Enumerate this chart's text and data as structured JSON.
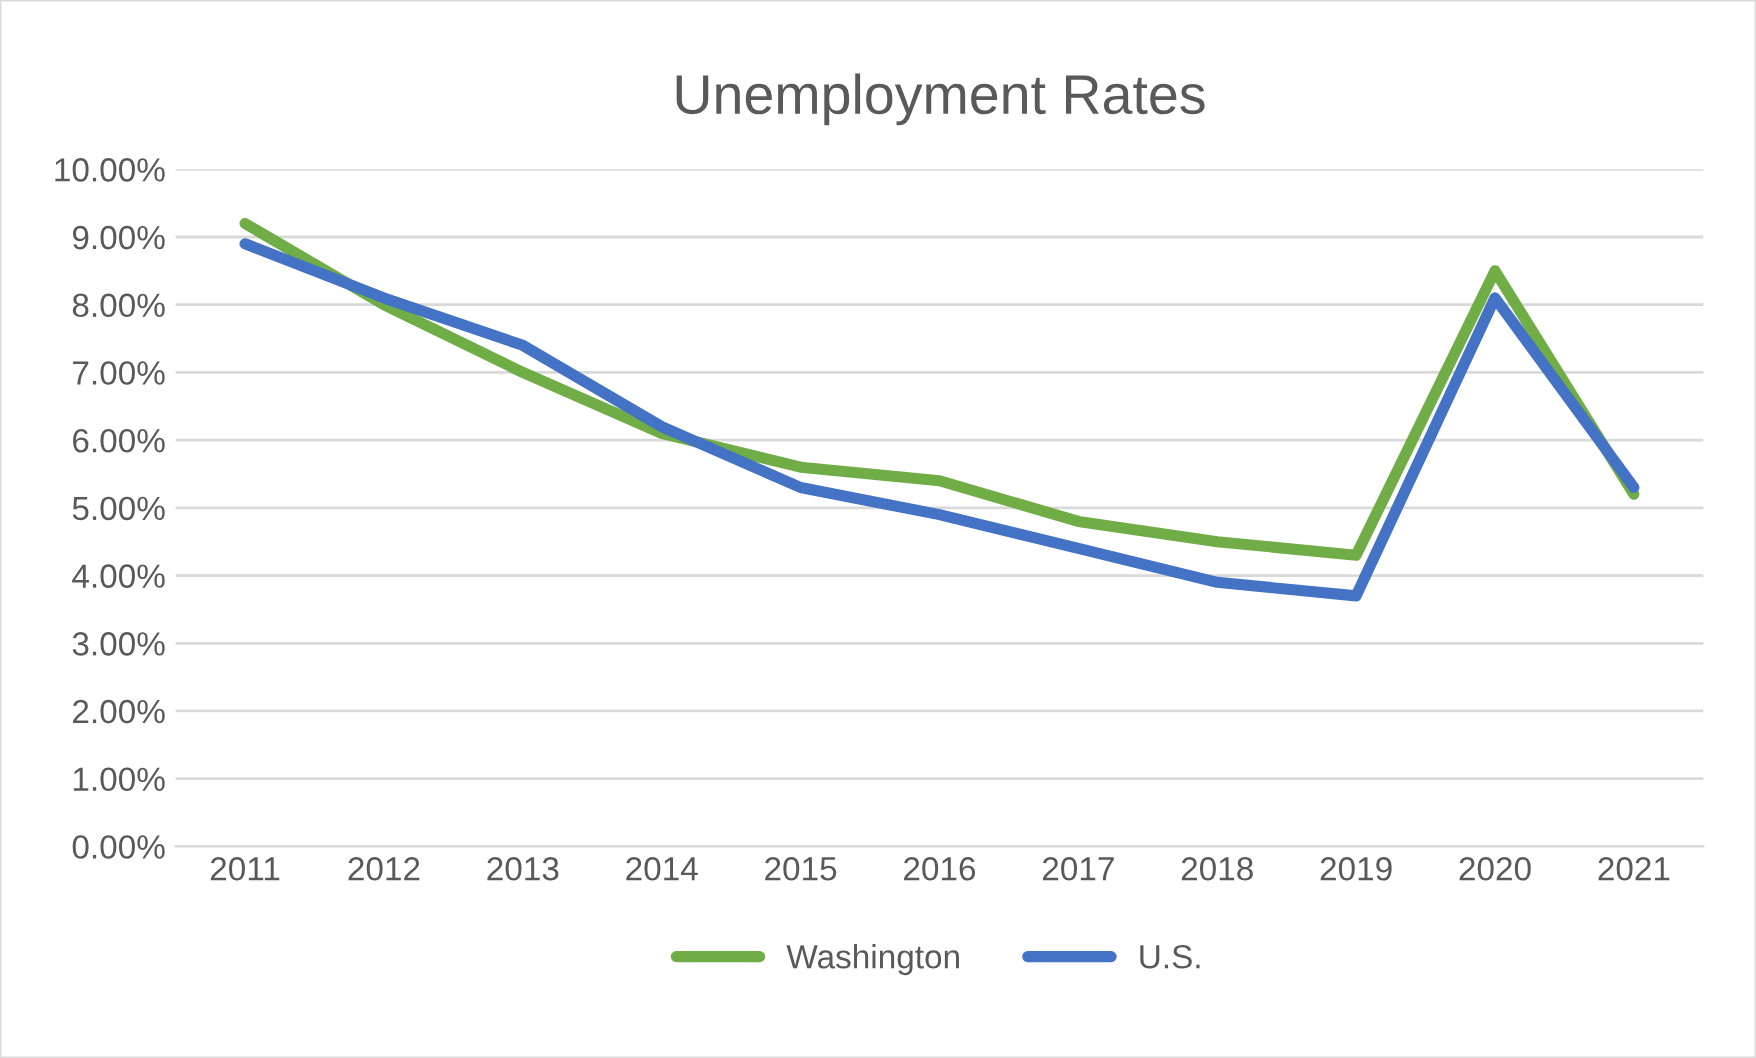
{
  "chart_data": {
    "type": "line",
    "title": "Unemployment Rates",
    "categories": [
      "2011",
      "2012",
      "2013",
      "2014",
      "2015",
      "2016",
      "2017",
      "2018",
      "2019",
      "2020",
      "2021"
    ],
    "series": [
      {
        "name": "Washington",
        "color": "#70ad47",
        "values": [
          9.2,
          8.0,
          7.0,
          6.1,
          5.6,
          5.4,
          4.8,
          4.5,
          4.3,
          8.5,
          5.2
        ]
      },
      {
        "name": "U.S.",
        "color": "#4472c4",
        "values": [
          8.9,
          8.1,
          7.4,
          6.2,
          5.3,
          4.9,
          4.4,
          3.9,
          3.7,
          8.1,
          5.3
        ]
      }
    ],
    "ylim": [
      0,
      10
    ],
    "yticks": [
      {
        "value": 0,
        "label": "0.00%"
      },
      {
        "value": 1,
        "label": "1.00%"
      },
      {
        "value": 2,
        "label": "2.00%"
      },
      {
        "value": 3,
        "label": "3.00%"
      },
      {
        "value": 4,
        "label": "4.00%"
      },
      {
        "value": 5,
        "label": "5.00%"
      },
      {
        "value": 6,
        "label": "6.00%"
      },
      {
        "value": 7,
        "label": "7.00%"
      },
      {
        "value": 8,
        "label": "8.00%"
      },
      {
        "value": 9,
        "label": "9.00%"
      },
      {
        "value": 10,
        "label": "10.00%"
      }
    ],
    "grid": "y",
    "legend": "bottom",
    "marker": "none",
    "line_style": "solid"
  }
}
